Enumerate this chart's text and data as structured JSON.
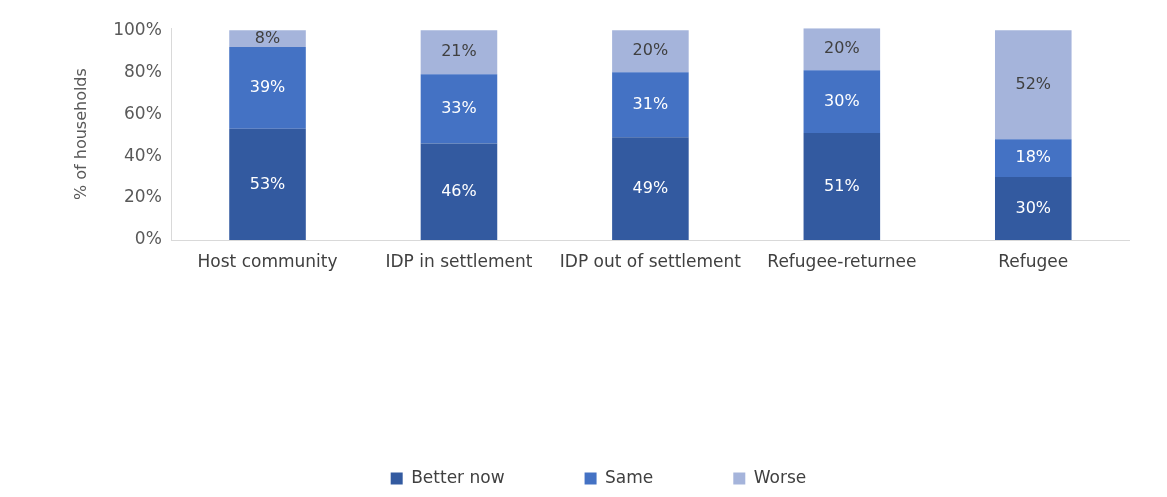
{
  "chart_data": {
    "type": "bar",
    "stacked": true,
    "ylabel": "% of households",
    "categories": [
      "Host community",
      "IDP in settlement",
      "IDP out of settlement",
      "Refugee-returnee",
      "Refugee"
    ],
    "series": [
      {
        "name": "Better now",
        "color": "#335aa0",
        "values": [
          53,
          46,
          49,
          51,
          30
        ],
        "value_labels": [
          "53%",
          "46%",
          "49%",
          "51%",
          "30%"
        ]
      },
      {
        "name": "Same",
        "color": "#4472c4",
        "values": [
          39,
          33,
          31,
          30,
          18
        ],
        "value_labels": [
          "39%",
          "33%",
          "31%",
          "30%",
          "18%"
        ]
      },
      {
        "name": "Worse",
        "color": "#a5b4db",
        "values": [
          8,
          21,
          20,
          20,
          52
        ],
        "value_labels": [
          "8%",
          "21%",
          "20%",
          "20%",
          "52%"
        ]
      }
    ],
    "ylim": [
      0,
      101
    ],
    "yticks": [
      {
        "value": 0,
        "label": "0%"
      },
      {
        "value": 20,
        "label": "20%"
      },
      {
        "value": 40,
        "label": "40%"
      },
      {
        "value": 60,
        "label": "60%"
      },
      {
        "value": 80,
        "label": "80%"
      },
      {
        "value": 100,
        "label": "100%"
      }
    ],
    "grid": false,
    "legend": "bottom"
  }
}
